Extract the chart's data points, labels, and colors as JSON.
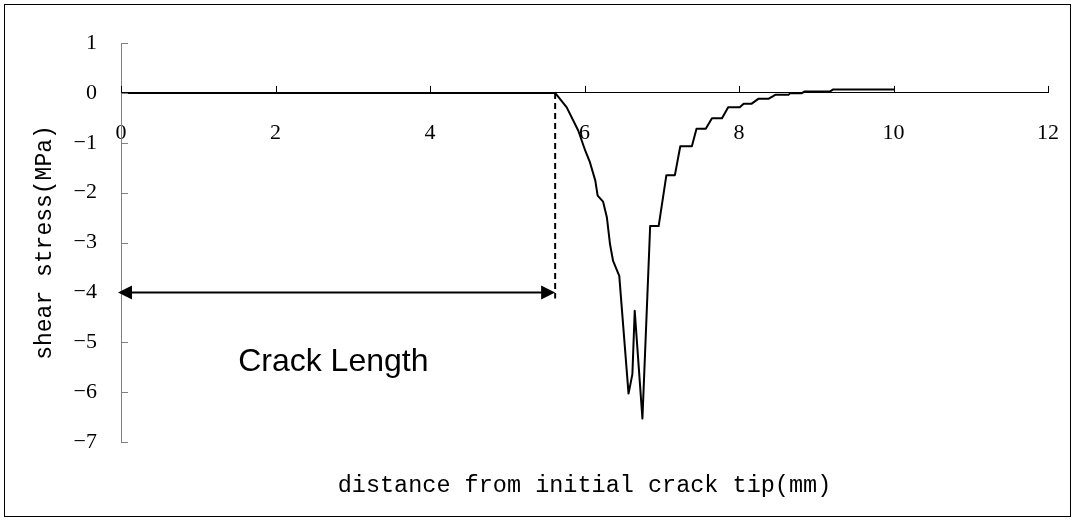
{
  "chart_data": {
    "type": "line",
    "xlabel": "distance from initial crack tip(mm)",
    "ylabel": "shear stress(MPa)",
    "annotations": [
      "Crack Length"
    ],
    "x": [
      0,
      5.62,
      5.77,
      5.92,
      6.01,
      6.07,
      6.14,
      6.17,
      6.24,
      6.29,
      6.33,
      6.37,
      6.45,
      6.57,
      6.62,
      6.65,
      6.75,
      6.85,
      6.96,
      7.06,
      7.17,
      7.24,
      7.39,
      7.45,
      7.57,
      7.65,
      7.78,
      7.86,
      8.01,
      8.06,
      8.16,
      8.25,
      8.38,
      8.47,
      8.64,
      8.66,
      8.81,
      8.85,
      9.18,
      9.22,
      10
    ],
    "values": [
      0,
      0,
      -0.29,
      -0.76,
      -1.16,
      -1.39,
      -1.76,
      -2.06,
      -2.18,
      -2.5,
      -3.03,
      -3.37,
      -3.67,
      -6.03,
      -5.64,
      -4.37,
      -6.53,
      -2.67,
      -2.67,
      -1.65,
      -1.65,
      -1.07,
      -1.07,
      -0.72,
      -0.72,
      -0.51,
      -0.51,
      -0.29,
      -0.29,
      -0.22,
      -0.22,
      -0.12,
      -0.12,
      -0.04,
      -0.04,
      -0.01,
      -0.01,
      0.03,
      0.03,
      0.07,
      0.07
    ],
    "color": "#000000",
    "marker": "none",
    "line_style": "solid",
    "xlim": [
      0,
      12
    ],
    "xticks": [
      0,
      2,
      4,
      6,
      8,
      10,
      12
    ],
    "ylim": [
      -7,
      1
    ],
    "yticks": [
      {
        "value": -7,
        "label": "−7"
      },
      {
        "value": -6,
        "label": "−6"
      },
      {
        "value": -5,
        "label": "−5"
      },
      {
        "value": -4,
        "label": "−4"
      },
      {
        "value": -3,
        "label": "−3"
      },
      {
        "value": -2,
        "label": "−2"
      },
      {
        "value": -1,
        "label": "−1"
      },
      0,
      1
    ]
  }
}
